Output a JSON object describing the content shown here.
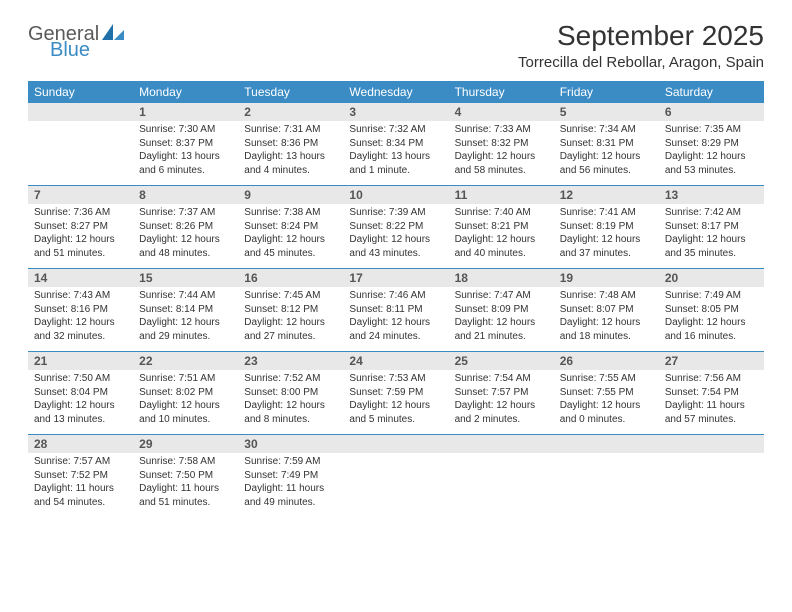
{
  "logo": {
    "general": "General",
    "blue": "Blue"
  },
  "header": {
    "month_title": "September 2025",
    "location": "Torrecilla del Rebollar, Aragon, Spain"
  },
  "colors": {
    "header_bar": "#3b8bc4",
    "daynum_bg": "#e8e8e8",
    "rule": "#3b8bc4",
    "text": "#333333",
    "logo_gray": "#5a5a5a",
    "logo_blue": "#3b8bc4"
  },
  "day_names": [
    "Sunday",
    "Monday",
    "Tuesday",
    "Wednesday",
    "Thursday",
    "Friday",
    "Saturday"
  ],
  "weeks": [
    [
      null,
      {
        "n": "1",
        "sr": "Sunrise: 7:30 AM",
        "ss": "Sunset: 8:37 PM",
        "d1": "Daylight: 13 hours",
        "d2": "and 6 minutes."
      },
      {
        "n": "2",
        "sr": "Sunrise: 7:31 AM",
        "ss": "Sunset: 8:36 PM",
        "d1": "Daylight: 13 hours",
        "d2": "and 4 minutes."
      },
      {
        "n": "3",
        "sr": "Sunrise: 7:32 AM",
        "ss": "Sunset: 8:34 PM",
        "d1": "Daylight: 13 hours",
        "d2": "and 1 minute."
      },
      {
        "n": "4",
        "sr": "Sunrise: 7:33 AM",
        "ss": "Sunset: 8:32 PM",
        "d1": "Daylight: 12 hours",
        "d2": "and 58 minutes."
      },
      {
        "n": "5",
        "sr": "Sunrise: 7:34 AM",
        "ss": "Sunset: 8:31 PM",
        "d1": "Daylight: 12 hours",
        "d2": "and 56 minutes."
      },
      {
        "n": "6",
        "sr": "Sunrise: 7:35 AM",
        "ss": "Sunset: 8:29 PM",
        "d1": "Daylight: 12 hours",
        "d2": "and 53 minutes."
      }
    ],
    [
      {
        "n": "7",
        "sr": "Sunrise: 7:36 AM",
        "ss": "Sunset: 8:27 PM",
        "d1": "Daylight: 12 hours",
        "d2": "and 51 minutes."
      },
      {
        "n": "8",
        "sr": "Sunrise: 7:37 AM",
        "ss": "Sunset: 8:26 PM",
        "d1": "Daylight: 12 hours",
        "d2": "and 48 minutes."
      },
      {
        "n": "9",
        "sr": "Sunrise: 7:38 AM",
        "ss": "Sunset: 8:24 PM",
        "d1": "Daylight: 12 hours",
        "d2": "and 45 minutes."
      },
      {
        "n": "10",
        "sr": "Sunrise: 7:39 AM",
        "ss": "Sunset: 8:22 PM",
        "d1": "Daylight: 12 hours",
        "d2": "and 43 minutes."
      },
      {
        "n": "11",
        "sr": "Sunrise: 7:40 AM",
        "ss": "Sunset: 8:21 PM",
        "d1": "Daylight: 12 hours",
        "d2": "and 40 minutes."
      },
      {
        "n": "12",
        "sr": "Sunrise: 7:41 AM",
        "ss": "Sunset: 8:19 PM",
        "d1": "Daylight: 12 hours",
        "d2": "and 37 minutes."
      },
      {
        "n": "13",
        "sr": "Sunrise: 7:42 AM",
        "ss": "Sunset: 8:17 PM",
        "d1": "Daylight: 12 hours",
        "d2": "and 35 minutes."
      }
    ],
    [
      {
        "n": "14",
        "sr": "Sunrise: 7:43 AM",
        "ss": "Sunset: 8:16 PM",
        "d1": "Daylight: 12 hours",
        "d2": "and 32 minutes."
      },
      {
        "n": "15",
        "sr": "Sunrise: 7:44 AM",
        "ss": "Sunset: 8:14 PM",
        "d1": "Daylight: 12 hours",
        "d2": "and 29 minutes."
      },
      {
        "n": "16",
        "sr": "Sunrise: 7:45 AM",
        "ss": "Sunset: 8:12 PM",
        "d1": "Daylight: 12 hours",
        "d2": "and 27 minutes."
      },
      {
        "n": "17",
        "sr": "Sunrise: 7:46 AM",
        "ss": "Sunset: 8:11 PM",
        "d1": "Daylight: 12 hours",
        "d2": "and 24 minutes."
      },
      {
        "n": "18",
        "sr": "Sunrise: 7:47 AM",
        "ss": "Sunset: 8:09 PM",
        "d1": "Daylight: 12 hours",
        "d2": "and 21 minutes."
      },
      {
        "n": "19",
        "sr": "Sunrise: 7:48 AM",
        "ss": "Sunset: 8:07 PM",
        "d1": "Daylight: 12 hours",
        "d2": "and 18 minutes."
      },
      {
        "n": "20",
        "sr": "Sunrise: 7:49 AM",
        "ss": "Sunset: 8:05 PM",
        "d1": "Daylight: 12 hours",
        "d2": "and 16 minutes."
      }
    ],
    [
      {
        "n": "21",
        "sr": "Sunrise: 7:50 AM",
        "ss": "Sunset: 8:04 PM",
        "d1": "Daylight: 12 hours",
        "d2": "and 13 minutes."
      },
      {
        "n": "22",
        "sr": "Sunrise: 7:51 AM",
        "ss": "Sunset: 8:02 PM",
        "d1": "Daylight: 12 hours",
        "d2": "and 10 minutes."
      },
      {
        "n": "23",
        "sr": "Sunrise: 7:52 AM",
        "ss": "Sunset: 8:00 PM",
        "d1": "Daylight: 12 hours",
        "d2": "and 8 minutes."
      },
      {
        "n": "24",
        "sr": "Sunrise: 7:53 AM",
        "ss": "Sunset: 7:59 PM",
        "d1": "Daylight: 12 hours",
        "d2": "and 5 minutes."
      },
      {
        "n": "25",
        "sr": "Sunrise: 7:54 AM",
        "ss": "Sunset: 7:57 PM",
        "d1": "Daylight: 12 hours",
        "d2": "and 2 minutes."
      },
      {
        "n": "26",
        "sr": "Sunrise: 7:55 AM",
        "ss": "Sunset: 7:55 PM",
        "d1": "Daylight: 12 hours",
        "d2": "and 0 minutes."
      },
      {
        "n": "27",
        "sr": "Sunrise: 7:56 AM",
        "ss": "Sunset: 7:54 PM",
        "d1": "Daylight: 11 hours",
        "d2": "and 57 minutes."
      }
    ],
    [
      {
        "n": "28",
        "sr": "Sunrise: 7:57 AM",
        "ss": "Sunset: 7:52 PM",
        "d1": "Daylight: 11 hours",
        "d2": "and 54 minutes."
      },
      {
        "n": "29",
        "sr": "Sunrise: 7:58 AM",
        "ss": "Sunset: 7:50 PM",
        "d1": "Daylight: 11 hours",
        "d2": "and 51 minutes."
      },
      {
        "n": "30",
        "sr": "Sunrise: 7:59 AM",
        "ss": "Sunset: 7:49 PM",
        "d1": "Daylight: 11 hours",
        "d2": "and 49 minutes."
      },
      null,
      null,
      null,
      null
    ]
  ]
}
